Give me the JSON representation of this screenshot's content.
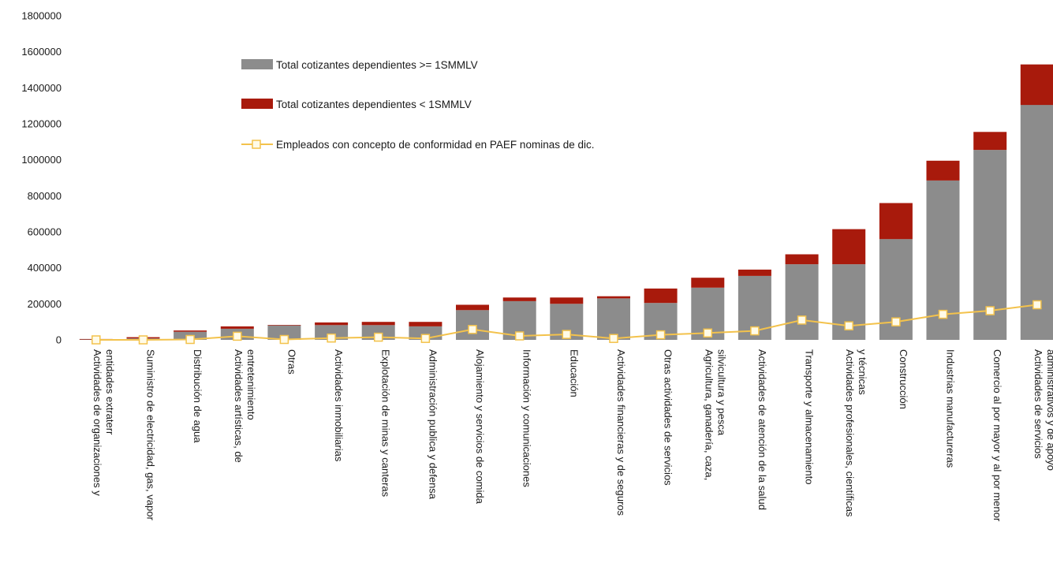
{
  "chart_data": {
    "type": "bar",
    "stacked": true,
    "categories": [
      [
        "Actividades de organizaciones y",
        "entidades extraterr"
      ],
      [
        "Suministro de electricidad, gas, vapor"
      ],
      [
        "Distribución de agua"
      ],
      [
        "Actividades artísticas, de",
        "entretenimiento"
      ],
      [
        "Otras"
      ],
      [
        "Actividades inmobiliarias"
      ],
      [
        "Explotación de minas y canteras"
      ],
      [
        "Administración publica y defensa"
      ],
      [
        "Alojamiento y servicios de comida"
      ],
      [
        "Información y comunicaciones"
      ],
      [
        "Educación"
      ],
      [
        "Actividades financieras y de seguros"
      ],
      [
        "Otras actividades de servicios"
      ],
      [
        "Agricultura, ganadería, caza,",
        "silvicultura y pesca"
      ],
      [
        "Actividades de atención de la salud"
      ],
      [
        "Transporte y almacenamiento"
      ],
      [
        "Actividades profesionales, científicas",
        "y técnicas"
      ],
      [
        "Construcción"
      ],
      [
        "Industrias manufactureras"
      ],
      [
        "Comercio al por mayor y al por menor"
      ],
      [
        "Actividades de servicios",
        "administrativos y de apoyo"
      ]
    ],
    "series": [
      {
        "name": "Total cotizantes dependientes >= 1SMMLV",
        "kind": "bar",
        "color": "#8c8c8c",
        "values": [
          2000,
          8000,
          45000,
          62000,
          80000,
          82000,
          82000,
          75000,
          165000,
          215000,
          200000,
          230000,
          205000,
          290000,
          355000,
          420000,
          420000,
          560000,
          885000,
          1055000,
          1305000
        ]
      },
      {
        "name": "Total cotizantes dependientes < 1SMMLV",
        "kind": "bar",
        "color": "#a81a0c",
        "values": [
          3000,
          7000,
          7000,
          13000,
          3000,
          15000,
          18000,
          25000,
          30000,
          20000,
          35000,
          12000,
          80000,
          55000,
          35000,
          55000,
          195000,
          200000,
          110000,
          100000,
          225000
        ]
      },
      {
        "name": "Empleados con concepto de conformidad en PAEF nominas de dic.",
        "kind": "line",
        "color": "#f3c24c",
        "values": [
          0,
          0,
          2000,
          20000,
          2000,
          10000,
          15000,
          8000,
          58000,
          22000,
          30000,
          8000,
          28000,
          38000,
          50000,
          110000,
          78000,
          100000,
          142000,
          162000,
          195000
        ]
      }
    ],
    "yticks": [
      0,
      200000,
      400000,
      600000,
      800000,
      1000000,
      1200000,
      1400000,
      1600000,
      1800000
    ],
    "ylim": [
      0,
      1800000
    ],
    "title": "",
    "xlabel": "",
    "ylabel": "",
    "grid": false,
    "legend_position": "top-center"
  }
}
